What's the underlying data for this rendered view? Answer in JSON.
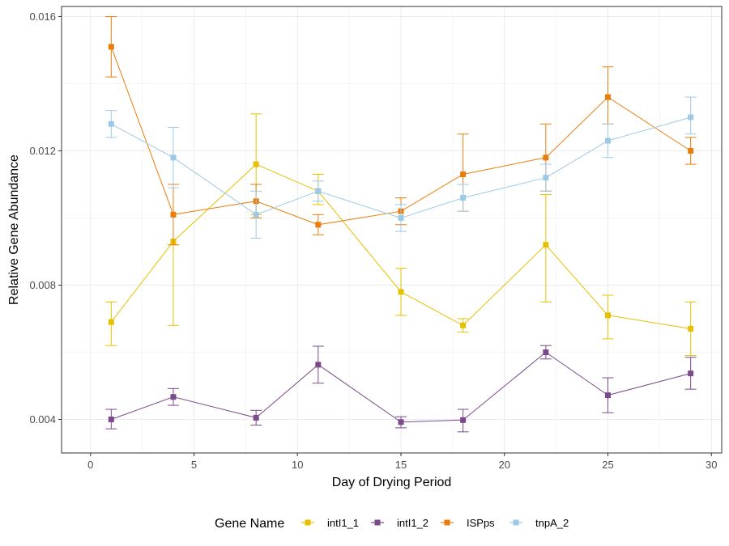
{
  "chart_data": {
    "type": "line",
    "xlabel": "Day of Drying Period",
    "ylabel": "Relative Gene Abundance",
    "xlim": [
      -1.4,
      30.5
    ],
    "ylim": [
      0.003,
      0.0163
    ],
    "x_ticks": [
      0,
      5,
      10,
      15,
      20,
      25,
      30
    ],
    "x_tick_labels": [
      "0",
      "5",
      "10",
      "15",
      "20",
      "25",
      "30"
    ],
    "y_ticks": [
      0.004,
      0.008,
      0.012,
      0.016
    ],
    "y_tick_labels": [
      "0.004",
      "0.008",
      "0.012",
      "0.016"
    ],
    "grid": true,
    "legend_position": "bottom",
    "legend_title": "Gene Name",
    "series": [
      {
        "name": "intI1_1",
        "color": "#E6C000",
        "x": [
          1,
          4,
          8,
          11,
          15,
          18,
          22,
          25,
          29
        ],
        "y": [
          0.0069,
          0.0093,
          0.0116,
          0.0108,
          0.0078,
          0.0068,
          0.0092,
          0.0071,
          0.0067
        ],
        "err_low": [
          0.0062,
          0.0068,
          0.0101,
          0.0104,
          0.0071,
          0.0066,
          0.0075,
          0.0064,
          0.0059
        ],
        "err_high": [
          0.0075,
          0.0092,
          0.0131,
          0.0113,
          0.0085,
          0.007,
          0.0107,
          0.0077,
          0.0075
        ]
      },
      {
        "name": "intI1_2",
        "color": "#7B4A8B",
        "x": [
          1,
          4,
          8,
          11,
          15,
          18,
          22,
          25,
          29
        ],
        "y": [
          0.004,
          0.00467,
          0.00405,
          0.00563,
          0.00392,
          0.00398,
          0.006,
          0.00472,
          0.00537
        ],
        "err_low": [
          0.00372,
          0.00442,
          0.00383,
          0.00508,
          0.00375,
          0.00363,
          0.0058,
          0.0042,
          0.0049
        ],
        "err_high": [
          0.0043,
          0.00492,
          0.00427,
          0.00618,
          0.00408,
          0.0043,
          0.0062,
          0.00524,
          0.00585
        ]
      },
      {
        "name": "ISPps",
        "color": "#E67E0D",
        "x": [
          1,
          4,
          8,
          11,
          15,
          18,
          22,
          25,
          29
        ],
        "y": [
          0.0151,
          0.0101,
          0.0105,
          0.0098,
          0.0102,
          0.0113,
          0.0118,
          0.0136,
          0.012
        ],
        "err_low": [
          0.0142,
          0.0092,
          0.01,
          0.0095,
          0.0098,
          0.0102,
          0.0108,
          0.0128,
          0.0116
        ],
        "err_high": [
          0.016,
          0.011,
          0.011,
          0.0101,
          0.0106,
          0.0125,
          0.0128,
          0.0145,
          0.0124
        ]
      },
      {
        "name": "tnpA_2",
        "color": "#9DC9E8",
        "x": [
          1,
          4,
          8,
          11,
          15,
          18,
          22,
          25,
          29
        ],
        "y": [
          0.0128,
          0.0118,
          0.0101,
          0.0108,
          0.01,
          0.0106,
          0.0112,
          0.0123,
          0.013
        ],
        "err_low": [
          0.0124,
          0.0109,
          0.0094,
          0.0105,
          0.0096,
          0.0102,
          0.0108,
          0.0118,
          0.0125
        ],
        "err_high": [
          0.0132,
          0.0127,
          0.0108,
          0.0111,
          0.0104,
          0.011,
          0.0116,
          0.0128,
          0.0136
        ]
      }
    ]
  }
}
